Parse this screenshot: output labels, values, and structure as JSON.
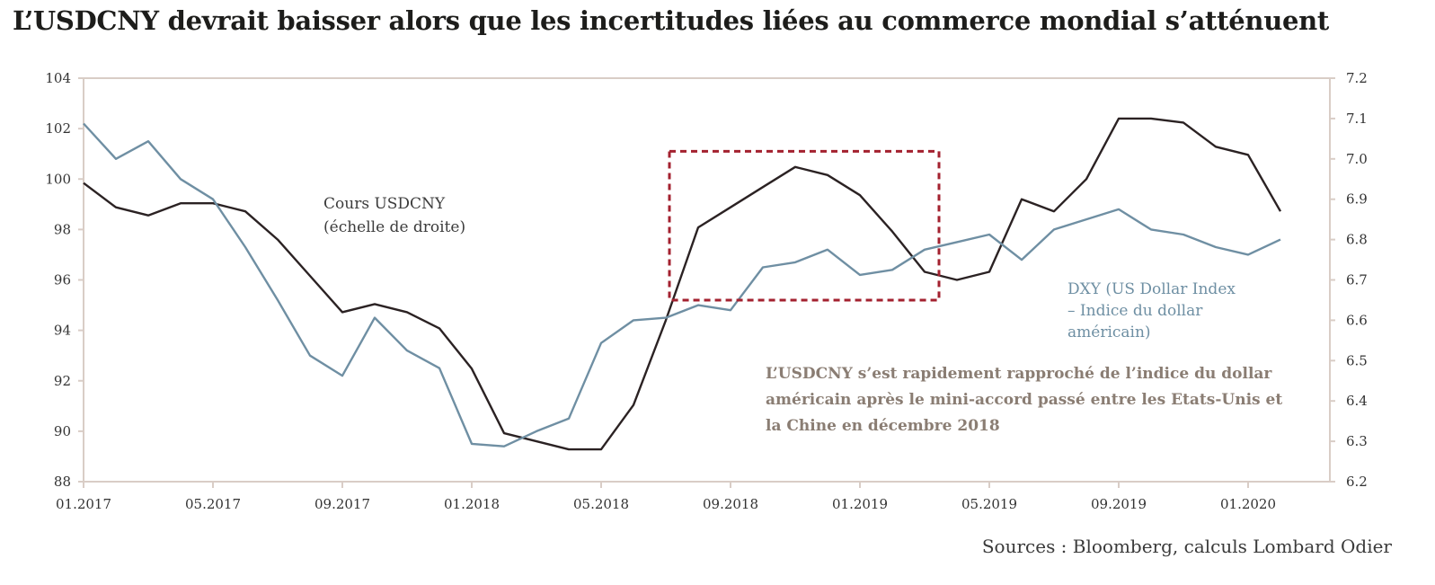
{
  "title": "L’USDCNY devrait baisser alors que les incertitudes liées au commerce mondial s’atténuent",
  "source": "Sources : Bloomberg, calculs Lombard Odier",
  "colors": {
    "usdcny": "#2b2223",
    "dxy": "#6f8fa3",
    "highlight": "#a3212f",
    "frame": "#d9cdc6",
    "annotation": "#8a7d73"
  },
  "annotations": {
    "usdcny_label": [
      "Cours USDCNY",
      "(échelle de droite)"
    ],
    "dxy_label": [
      "DXY (US Dollar Index",
      "– Indice du dollar",
      "américain)"
    ],
    "note": [
      "L’USDCNY s’est rapidement rapproché de l’indice du dollar",
      "américain après le mini-accord passé entre les Etats-Unis et",
      "la Chine en décembre 2018"
    ]
  },
  "chart_data": {
    "type": "line",
    "x_tick_labels": [
      "01.2017",
      "05.2017",
      "09.2017",
      "01.2018",
      "05.2018",
      "09.2018",
      "01.2019",
      "05.2019",
      "09.2019",
      "01.2020"
    ],
    "x_range": [
      "2017-01",
      "2020-03"
    ],
    "y_left": {
      "range": [
        88,
        104
      ],
      "ticks": [
        "88",
        "90",
        "92",
        "94",
        "96",
        "98",
        "100",
        "102",
        "104"
      ]
    },
    "y_right": {
      "range": [
        6.2,
        7.2
      ],
      "ticks": [
        "6.2",
        "6.3",
        "6.4",
        "6.5",
        "6.6",
        "6.7",
        "6.8",
        "6.9",
        "7.0",
        "7.1",
        "7.2"
      ]
    },
    "highlight_box": {
      "x_from": "2018-07",
      "x_to": "2019-03",
      "y_from": 95.2,
      "y_to": 101.1
    },
    "series": [
      {
        "name": "Cours USDCNY",
        "axis": "right",
        "x": [
          "2017-01",
          "2017-02",
          "2017-03",
          "2017-04",
          "2017-05",
          "2017-06",
          "2017-07",
          "2017-08",
          "2017-09",
          "2017-10",
          "2017-11",
          "2017-12",
          "2018-01",
          "2018-02",
          "2018-03",
          "2018-04",
          "2018-05",
          "2018-06",
          "2018-07",
          "2018-08",
          "2018-09",
          "2018-10",
          "2018-11",
          "2018-12",
          "2019-01",
          "2019-02",
          "2019-03",
          "2019-04",
          "2019-05",
          "2019-06",
          "2019-07",
          "2019-08",
          "2019-09",
          "2019-10",
          "2019-11",
          "2019-12",
          "2020-01",
          "2020-02"
        ],
        "y": [
          6.94,
          6.88,
          6.86,
          6.89,
          6.89,
          6.87,
          6.8,
          6.71,
          6.62,
          6.64,
          6.62,
          6.58,
          6.48,
          6.32,
          6.3,
          6.28,
          6.28,
          6.39,
          6.6,
          6.83,
          6.88,
          6.93,
          6.98,
          6.96,
          6.91,
          6.82,
          6.72,
          6.7,
          6.72,
          6.9,
          6.87,
          6.95,
          7.1,
          7.1,
          7.09,
          7.03,
          7.01,
          6.87
        ]
      },
      {
        "name": "DXY (US Dollar Index – Indice du dollar américain)",
        "axis": "left",
        "x": [
          "2017-01",
          "2017-02",
          "2017-03",
          "2017-04",
          "2017-05",
          "2017-06",
          "2017-07",
          "2017-08",
          "2017-09",
          "2017-10",
          "2017-11",
          "2017-12",
          "2018-01",
          "2018-02",
          "2018-03",
          "2018-04",
          "2018-05",
          "2018-06",
          "2018-07",
          "2018-08",
          "2018-09",
          "2018-10",
          "2018-11",
          "2018-12",
          "2019-01",
          "2019-02",
          "2019-03",
          "2019-04",
          "2019-05",
          "2019-06",
          "2019-07",
          "2019-08",
          "2019-09",
          "2019-10",
          "2019-11",
          "2019-12",
          "2020-01",
          "2020-02"
        ],
        "y": [
          102.2,
          100.8,
          101.5,
          100.0,
          99.2,
          97.3,
          95.2,
          93.0,
          92.2,
          94.5,
          93.2,
          92.5,
          89.5,
          89.4,
          90.0,
          90.5,
          93.5,
          94.4,
          94.5,
          95.0,
          94.8,
          96.5,
          96.7,
          97.2,
          96.2,
          96.4,
          97.2,
          97.5,
          97.8,
          96.8,
          98.0,
          98.4,
          98.8,
          98.0,
          97.8,
          97.3,
          97.0,
          97.6
        ]
      }
    ]
  }
}
